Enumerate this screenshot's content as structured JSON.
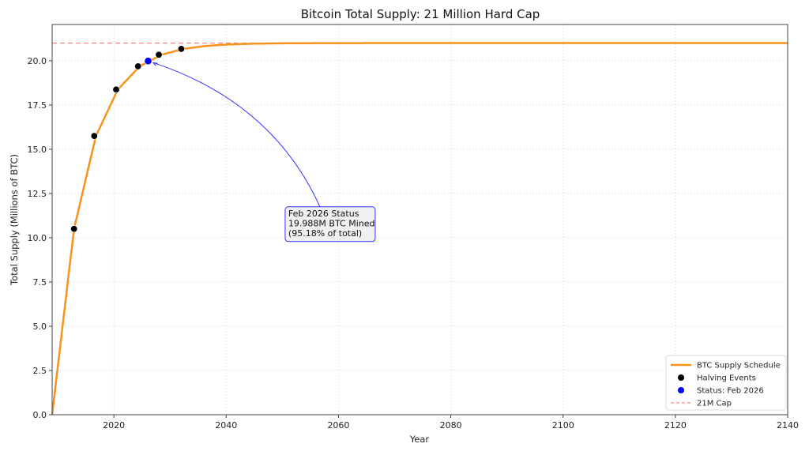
{
  "chart_data": {
    "type": "line",
    "title": "Bitcoin Total Supply: 21 Million Hard Cap",
    "xlabel": "Year",
    "ylabel": "Total Supply (Millions of BTC)",
    "xlim": [
      2009,
      2140
    ],
    "ylim": [
      0,
      22.05
    ],
    "xticks": [
      2020,
      2040,
      2060,
      2080,
      2100,
      2120,
      2140
    ],
    "yticks": [
      0.0,
      2.5,
      5.0,
      7.5,
      10.0,
      12.5,
      15.0,
      17.5,
      20.0
    ],
    "ytick_labels": [
      "0.0",
      "2.5",
      "5.0",
      "7.5",
      "10.0",
      "12.5",
      "15.0",
      "17.5",
      "20.0"
    ],
    "grid": true,
    "series": [
      {
        "name": "BTC Supply Schedule",
        "type": "line",
        "color": "#f7931a",
        "model": "halving-schedule",
        "start_year": 2009,
        "era_years": 3.9,
        "era_supply": 10.5,
        "cap": 21.0
      },
      {
        "name": "Halving Events",
        "type": "scatter",
        "color": "#000000",
        "x": [
          2012.9,
          2016.5,
          2020.4,
          2024.3,
          2028.0,
          2032.0
        ],
        "y": [
          10.5,
          15.75,
          18.375,
          19.6875,
          20.34,
          20.67
        ]
      },
      {
        "name": "Status: Feb 2026",
        "type": "scatter",
        "color": "#0000ff",
        "x": [
          2026.1
        ],
        "y": [
          19.988
        ]
      },
      {
        "name": "21M Cap",
        "type": "hline",
        "color": "#ff8080",
        "y": 21.0
      }
    ],
    "annotation": {
      "lines": [
        "Feb 2026 Status",
        "19.988M BTC Mined",
        "(95.18% of total)"
      ],
      "target": {
        "x": 2026.1,
        "y": 19.988
      },
      "text_anchor": {
        "x": 2050.5,
        "y": 10.5
      },
      "color": "#3333ff"
    },
    "legend": {
      "position": "bottom-right",
      "entries": [
        "BTC Supply Schedule",
        "Halving Events",
        "Status: Feb 2026",
        "21M Cap"
      ]
    }
  }
}
